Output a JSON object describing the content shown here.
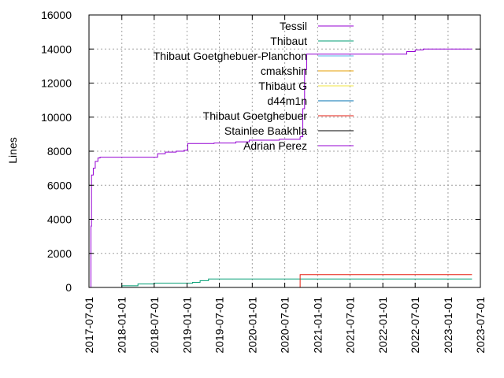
{
  "chart_data": {
    "type": "line",
    "ylabel": "Lines",
    "xlim": [
      "2017-07-01",
      "2023-07-01"
    ],
    "ylim": [
      0,
      16000
    ],
    "y_ticks": [
      0,
      2000,
      4000,
      6000,
      8000,
      10000,
      12000,
      14000,
      16000
    ],
    "x_ticks": [
      "2017-07-01",
      "2018-01-01",
      "2018-07-01",
      "2019-01-01",
      "2019-07-01",
      "2020-01-01",
      "2020-07-01",
      "2021-01-01",
      "2021-07-01",
      "2022-01-01",
      "2022-07-01",
      "2023-01-01",
      "2023-07-01"
    ],
    "grid": true,
    "legend_position": "top-right",
    "series": [
      {
        "name": "Tessil",
        "color": "#9400d3",
        "width": 1,
        "points": [
          [
            "2017-07-10",
            0
          ],
          [
            "2017-07-12",
            3600
          ],
          [
            "2017-07-15",
            6600
          ],
          [
            "2017-07-25",
            7000
          ],
          [
            "2017-08-05",
            7400
          ],
          [
            "2017-08-20",
            7600
          ],
          [
            "2017-09-01",
            7650
          ],
          [
            "2018-07-15",
            7650
          ],
          [
            "2018-07-20",
            7850
          ],
          [
            "2018-09-01",
            7950
          ],
          [
            "2018-11-01",
            8000
          ],
          [
            "2018-12-15",
            8050
          ],
          [
            "2019-01-05",
            8450
          ],
          [
            "2019-06-01",
            8480
          ],
          [
            "2019-10-01",
            8550
          ],
          [
            "2019-12-15",
            8650
          ],
          [
            "2020-06-01",
            8700
          ],
          [
            "2020-09-25",
            8850
          ]
        ]
      },
      {
        "name": "Thibaut",
        "color": "#009e73",
        "width": 1,
        "points": [
          [
            "2017-10-01",
            0
          ],
          [
            "2018-01-01",
            100
          ],
          [
            "2018-04-01",
            200
          ],
          [
            "2018-07-01",
            250
          ],
          [
            "2019-02-01",
            300
          ],
          [
            "2019-03-15",
            400
          ],
          [
            "2019-05-01",
            500
          ],
          [
            "2023-05-15",
            500
          ]
        ]
      },
      {
        "name": "Thibaut Goetghebuer-Planchon",
        "color": "#56b4e9",
        "width": 1,
        "points": [
          [
            "2018-08-01",
            0
          ],
          [
            "2023-05-15",
            10
          ]
        ]
      },
      {
        "name": "cmakshin",
        "color": "#e69f00",
        "width": 1,
        "points": [
          [
            "2018-08-01",
            0
          ],
          [
            "2023-05-15",
            10
          ]
        ]
      },
      {
        "name": "Thibaut G",
        "color": "#f0e442",
        "width": 1,
        "points": [
          [
            "2018-08-01",
            0
          ],
          [
            "2023-05-15",
            10
          ]
        ]
      },
      {
        "name": "d44m1n",
        "color": "#0072b2",
        "width": 1,
        "points": [
          [
            "2018-08-01",
            0
          ],
          [
            "2023-05-15",
            10
          ]
        ]
      },
      {
        "name": "Thibaut Goetghebuer",
        "color": "#e51e10",
        "width": 1,
        "points": [
          [
            "2020-09-20",
            0
          ],
          [
            "2020-09-25",
            750
          ],
          [
            "2023-05-15",
            750
          ]
        ]
      },
      {
        "name": "Stainlee Baakhla",
        "color": "#000000",
        "width": 1,
        "points": [
          [
            "2018-08-01",
            0
          ],
          [
            "2023-05-15",
            10
          ]
        ]
      },
      {
        "name": "Adrian Perez",
        "color": "#9400d3",
        "width": 1,
        "points": [
          [
            "2020-09-25",
            8850
          ],
          [
            "2020-10-10",
            10500
          ],
          [
            "2020-10-20",
            12800
          ],
          [
            "2020-11-01",
            13700
          ],
          [
            "2022-05-01",
            13700
          ],
          [
            "2022-05-15",
            13850
          ],
          [
            "2022-07-01",
            13950
          ],
          [
            "2022-08-15",
            14000
          ],
          [
            "2023-05-15",
            14000
          ]
        ]
      }
    ]
  }
}
